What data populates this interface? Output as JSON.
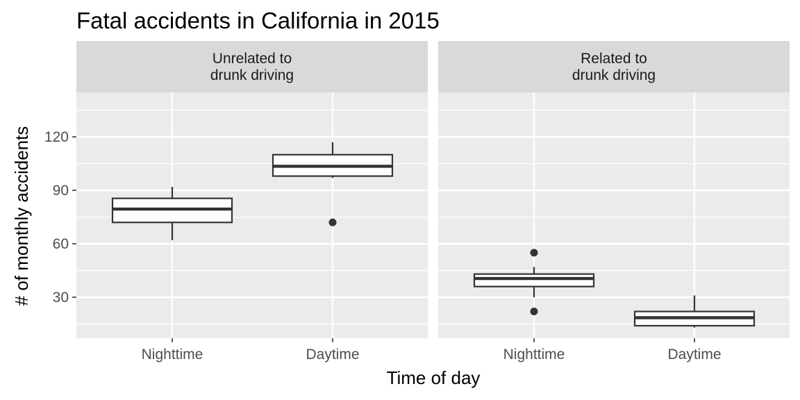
{
  "chart_data": {
    "type": "boxplot",
    "title": "Fatal accidents in California in 2015",
    "xlabel": "Time of day",
    "ylabel": "# of monthly accidents",
    "ylim": [
      7,
      145
    ],
    "y_ticks": [
      30,
      60,
      90,
      120
    ],
    "y_minor_ticks": [
      15,
      45,
      75,
      105,
      135
    ],
    "categories": [
      "Nighttime",
      "Daytime"
    ],
    "grid": true,
    "panel_bg": "#ebebeb",
    "strip_bg": "#d9d9d9",
    "box_stroke": "#333333",
    "facets": [
      {
        "label_lines": [
          "Unrelated to",
          "drunk driving"
        ],
        "boxes": [
          {
            "category": "Nighttime",
            "whisker_low": 62,
            "q1": 72,
            "median": 79.5,
            "q3": 85.5,
            "whisker_high": 92,
            "outliers": []
          },
          {
            "category": "Daytime",
            "whisker_low": 97,
            "q1": 98,
            "median": 103.5,
            "q3": 110,
            "whisker_high": 117,
            "outliers": [
              72
            ]
          }
        ]
      },
      {
        "label_lines": [
          "Related to",
          "drunk driving"
        ],
        "boxes": [
          {
            "category": "Nighttime",
            "whisker_low": 30,
            "q1": 36,
            "median": 40.5,
            "q3": 43,
            "whisker_high": 47,
            "outliers": [
              55,
              22
            ]
          },
          {
            "category": "Daytime",
            "whisker_low": 13,
            "q1": 14,
            "median": 18.5,
            "q3": 22,
            "whisker_high": 31,
            "outliers": []
          }
        ]
      }
    ]
  }
}
